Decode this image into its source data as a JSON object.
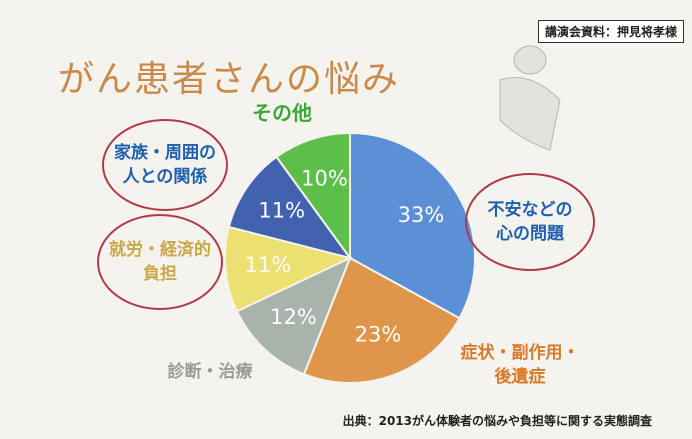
{
  "chart_data": {
    "type": "pie",
    "title": "がん患者さんの悩み",
    "badge": "講演会資料：押見将孝様",
    "source": "出典：2013がん体験者の悩みや負担等に関する実態調査",
    "categories": [
      "不安などの\n心の問題",
      "症状・副作用・\n後遺症",
      "診断・治療",
      "就労・経済的\n負担",
      "家族・周囲の\n人との関係",
      "その他"
    ],
    "values": [
      33,
      23,
      12,
      11,
      11,
      10
    ],
    "value_labels": [
      "33%",
      "23%",
      "12%",
      "11%",
      "11%",
      "10%"
    ],
    "colors": [
      "#5b8fd6",
      "#e0964a",
      "#a9b2ab",
      "#ece070",
      "#4262b0",
      "#5cbf4a"
    ]
  }
}
